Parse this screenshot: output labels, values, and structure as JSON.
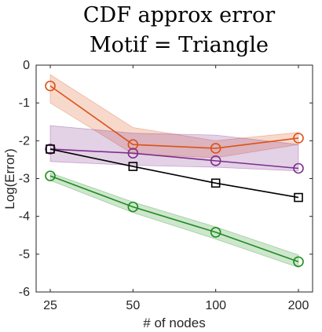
{
  "chart_data": {
    "type": "line",
    "title": [
      "CDF approx error",
      "Motif = Triangle"
    ],
    "xlabel": "# of nodes",
    "ylabel": "Log(Error)",
    "x": [
      25,
      50,
      100,
      200
    ],
    "x_scale": "log",
    "xtick_labels": [
      "25",
      "50",
      "100",
      "200"
    ],
    "ylim": [
      -6,
      0
    ],
    "yticks": [
      0,
      -1,
      -2,
      -3,
      -4,
      -5,
      -6
    ],
    "ytick_labels": [
      "0",
      "-1",
      "-2",
      "-3",
      "-4",
      "-5",
      "-6"
    ],
    "grid": false,
    "series": [
      {
        "color": "#D95319",
        "marker": "circle",
        "values": [
          -0.55,
          -2.1,
          -2.2,
          -1.93
        ],
        "band_upper": [
          -0.25,
          -1.65,
          -2.0,
          -1.78
        ],
        "band_lower": [
          -1.0,
          -2.35,
          -2.45,
          -2.1
        ]
      },
      {
        "color": "#7E2F8E",
        "marker": "circle",
        "values": [
          -2.22,
          -2.33,
          -2.53,
          -2.73
        ],
        "band_upper": [
          -1.6,
          -1.8,
          -1.85,
          -2.1
        ],
        "band_lower": [
          -2.55,
          -2.65,
          -2.7,
          -2.8
        ]
      },
      {
        "color": "#000000",
        "marker": "square",
        "values": [
          -2.22,
          -2.68,
          -3.12,
          -3.5
        ],
        "band_upper": null,
        "band_lower": null
      },
      {
        "color": "#1E8C1E",
        "marker": "circle",
        "values": [
          -2.93,
          -3.75,
          -4.42,
          -5.2
        ],
        "band_upper": [
          -2.85,
          -3.62,
          -4.28,
          -5.02
        ],
        "band_lower": [
          -3.05,
          -3.9,
          -4.6,
          -5.35
        ]
      }
    ]
  }
}
